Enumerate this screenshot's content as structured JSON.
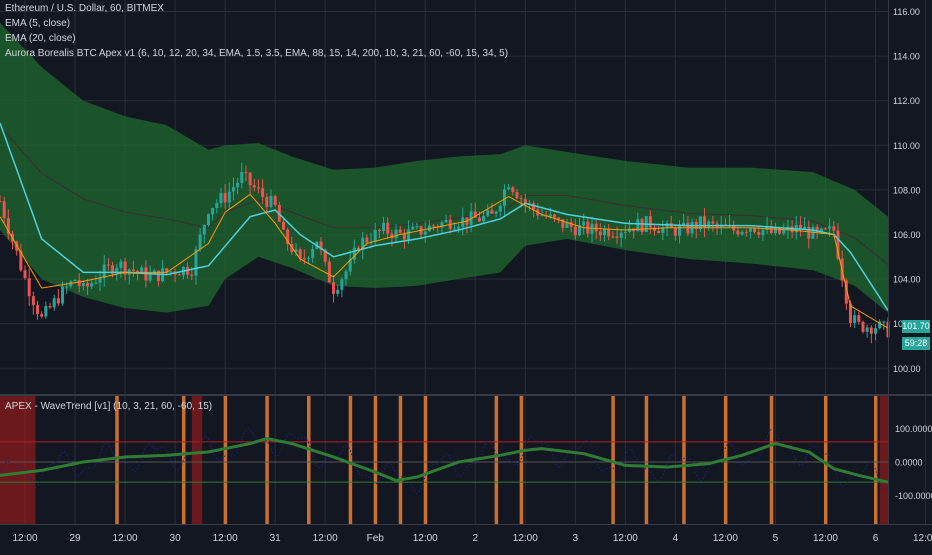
{
  "legend": {
    "symbol": "Ethereum / U.S. Dollar, 60, BITMEX",
    "ema1": "EMA (5, close)",
    "ema2": "EMA (20, close)",
    "indicator": "Aurora Borealis BTC Apex v1 (6, 10, 12, 20, 34, EMA, 1.5, 3.5, EMA, 88, 15, 14, 200, 10, 3, 21, 60, -60, 15, 34, 5)",
    "oscillator": "APEX - WaveTrend [v1] (10, 3, 21, 60, -60, 15)"
  },
  "price_axis": {
    "ticks": [
      {
        "value": 116,
        "label": "116.00"
      },
      {
        "value": 114,
        "label": "114.00"
      },
      {
        "value": 112,
        "label": "112.00"
      },
      {
        "value": 110,
        "label": "110.00"
      },
      {
        "value": 108,
        "label": "108.00"
      },
      {
        "value": 106,
        "label": "106.00"
      },
      {
        "value": 104,
        "label": "104.00"
      },
      {
        "value": 102,
        "label": "102.00"
      },
      {
        "value": 100,
        "label": "100.00"
      }
    ],
    "last_price": "101.70",
    "countdown": "59:28"
  },
  "osc_axis": {
    "ticks": [
      {
        "value": 100,
        "label": "100.0000"
      },
      {
        "value": 0,
        "label": "0.0000"
      },
      {
        "value": -100,
        "label": "-100.0000"
      }
    ]
  },
  "time_axis": {
    "labels": [
      "12:00",
      "29",
      "12:00",
      "30",
      "12:00",
      "31",
      "12:00",
      "Feb",
      "12:00",
      "2",
      "12:00",
      "3",
      "12:00",
      "4",
      "12:00",
      "5",
      "12:00",
      "6",
      "12:00"
    ]
  },
  "colors": {
    "background": "#131722",
    "grid": "#2a2e39",
    "up": "#26a69a",
    "down": "#ef5350",
    "band": "#1e6b2e",
    "ema_fast": "#ff9800",
    "ema_slow": "#4dd0e1",
    "osc_line": "#2e7d32",
    "osc_dots": "#1a237e",
    "osc_bar": "#e07a2e",
    "osc_zone": "#b71c1c"
  },
  "chart_data": [
    {
      "type": "line",
      "title": "Ethereum / U.S. Dollar, 60, BITMEX",
      "y_unit": "USD",
      "ylim": [
        99.2,
        116.5
      ],
      "x_units": "hours since first visible bar (Jan 28 ~06:00)",
      "xlim": [
        0,
        213
      ],
      "grid": true,
      "series": [
        {
          "name": "Close (approx.)",
          "x": [
            0,
            6,
            10,
            14,
            18,
            20,
            24,
            28,
            32,
            36,
            42,
            46,
            50,
            54,
            58,
            62,
            66,
            68,
            70,
            72,
            76,
            78,
            80,
            84,
            86,
            88,
            92,
            96,
            100,
            104,
            108,
            114,
            118,
            122,
            126,
            130,
            134,
            138,
            142,
            148,
            152,
            156,
            160,
            164,
            168,
            172,
            176,
            180,
            186,
            192,
            196,
            200,
            202,
            204,
            206,
            210,
            213
          ],
          "values": [
            107.5,
            104.0,
            102.2,
            103.2,
            104.0,
            103.5,
            104.2,
            104.7,
            104.4,
            104.1,
            104.4,
            104.5,
            107.2,
            107.7,
            108.6,
            107.9,
            107.2,
            105.9,
            105.4,
            104.7,
            105.8,
            104.5,
            103.6,
            104.6,
            105.6,
            105.8,
            106.2,
            106.0,
            106.1,
            106.4,
            106.6,
            106.7,
            106.8,
            108.4,
            107.4,
            106.9,
            106.5,
            106.3,
            106.2,
            106.2,
            106.4,
            106.5,
            106.2,
            106.2,
            106.5,
            106.3,
            106.2,
            106.4,
            106.0,
            106.3,
            105.9,
            106.2,
            104.2,
            102.3,
            101.9,
            101.9,
            101.7
          ]
        },
        {
          "name": "EMA (5, close)",
          "x": [
            0,
            10,
            20,
            30,
            40,
            50,
            54,
            60,
            66,
            72,
            80,
            88,
            96,
            104,
            112,
            122,
            130,
            140,
            150,
            160,
            170,
            180,
            190,
            200,
            204,
            213
          ],
          "values": [
            106.8,
            103.6,
            103.9,
            104.3,
            104.3,
            105.6,
            107.0,
            107.8,
            106.5,
            104.9,
            104.1,
            105.6,
            106.0,
            106.3,
            106.6,
            107.7,
            106.9,
            106.3,
            106.2,
            106.3,
            106.3,
            106.3,
            106.2,
            106.0,
            102.8,
            101.8
          ]
        },
        {
          "name": "EMA (20, close)",
          "x": [
            0,
            10,
            20,
            30,
            40,
            50,
            60,
            66,
            72,
            80,
            90,
            100,
            110,
            120,
            126,
            136,
            150,
            165,
            180,
            195,
            200,
            204,
            213
          ],
          "values": [
            111.0,
            105.8,
            104.3,
            104.3,
            104.2,
            104.6,
            106.8,
            107.1,
            106.0,
            105.0,
            105.5,
            105.8,
            106.2,
            106.7,
            107.4,
            106.9,
            106.5,
            106.4,
            106.4,
            106.2,
            106.0,
            105.2,
            102.6
          ]
        },
        {
          "name": "Band upper",
          "x": [
            0,
            10,
            20,
            30,
            40,
            50,
            54,
            62,
            70,
            80,
            90,
            100,
            110,
            120,
            126,
            136,
            150,
            165,
            180,
            195,
            205,
            213
          ],
          "values": [
            115.5,
            113.5,
            112.0,
            111.3,
            110.9,
            109.8,
            110.0,
            110.1,
            109.5,
            108.9,
            109.0,
            109.3,
            109.5,
            109.6,
            110.0,
            109.7,
            109.3,
            109.0,
            109.0,
            108.8,
            108.0,
            106.8
          ]
        },
        {
          "name": "Band lower",
          "x": [
            0,
            10,
            20,
            30,
            40,
            50,
            54,
            62,
            70,
            80,
            90,
            100,
            110,
            120,
            126,
            136,
            150,
            165,
            180,
            195,
            205,
            213
          ],
          "values": [
            106.2,
            104.0,
            103.2,
            102.7,
            102.5,
            102.8,
            104.0,
            105.0,
            104.5,
            103.7,
            103.6,
            103.7,
            104.0,
            104.3,
            105.5,
            105.8,
            105.3,
            104.9,
            104.7,
            104.4,
            103.7,
            102.5
          ]
        }
      ]
    },
    {
      "type": "line",
      "title": "APEX - WaveTrend [v1] (10, 3, 21, 60, -60, 15)",
      "ylim": [
        -165,
        160
      ],
      "reference_levels": [
        60,
        0,
        -60
      ],
      "x_units": "hours since first visible bar",
      "xlim": [
        0,
        213
      ],
      "series": [
        {
          "name": "WaveTrend (green line)",
          "x": [
            0,
            10,
            20,
            30,
            40,
            50,
            60,
            64,
            70,
            80,
            90,
            95,
            100,
            110,
            120,
            126,
            130,
            140,
            150,
            160,
            170,
            178,
            186,
            194,
            200,
            206,
            213
          ],
          "values": [
            -40,
            -25,
            0,
            15,
            20,
            30,
            55,
            70,
            55,
            15,
            -30,
            -55,
            -45,
            0,
            20,
            35,
            40,
            25,
            -10,
            -15,
            -5,
            20,
            55,
            30,
            -20,
            -40,
            -60
          ]
        }
      ],
      "orange_bar_hours": [
        28,
        44,
        54,
        64,
        74,
        84,
        90,
        96,
        102,
        119,
        125,
        147,
        155,
        164,
        174,
        185,
        198,
        210
      ]
    }
  ]
}
